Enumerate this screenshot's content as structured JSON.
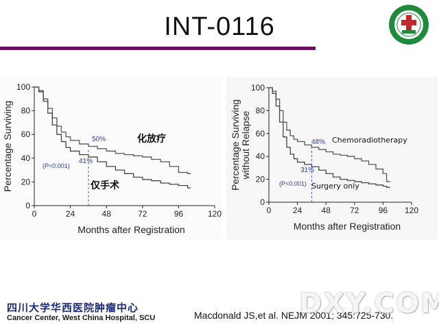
{
  "slide": {
    "title": "INT-0116",
    "institution_cn": "四川大学华西医院肿瘤中心",
    "institution_en": "Cancer Center, West China Hospital, SCU",
    "citation": "Macdonald JS,et al. NEJM 2001; 345:725-730.",
    "watermark": "DXY.COM",
    "accent_color": "#6a0f5e",
    "logo_colors": {
      "green": "#1f8a3a",
      "red": "#c0282b"
    }
  },
  "chart_data": [
    {
      "type": "line",
      "subtype": "kaplan-meier",
      "xlabel": "Months after Registration",
      "ylabel": "Percentage Surviving",
      "xlim": [
        0,
        120
      ],
      "ylim": [
        0,
        100
      ],
      "xticks": [
        0,
        24,
        48,
        72,
        96,
        120
      ],
      "yticks": [
        0,
        20,
        40,
        60,
        80,
        100
      ],
      "grid": false,
      "annotations": {
        "upper_pct": "50%",
        "lower_pct": "41%",
        "p_value": "(P<0.001)",
        "dashed_at_month": 36
      },
      "series": [
        {
          "name": "化放疗",
          "x": [
            0,
            3,
            6,
            9,
            12,
            15,
            18,
            21,
            24,
            30,
            36,
            42,
            48,
            54,
            60,
            66,
            72,
            78,
            84,
            90,
            96,
            102,
            104
          ],
          "y": [
            100,
            97,
            90,
            82,
            74,
            67,
            62,
            58,
            55,
            52,
            50,
            48,
            46,
            44,
            43,
            42,
            41,
            39,
            37,
            33,
            28,
            27,
            27
          ]
        },
        {
          "name": "仅手术",
          "x": [
            0,
            3,
            6,
            9,
            12,
            15,
            18,
            21,
            24,
            30,
            36,
            42,
            48,
            54,
            60,
            66,
            72,
            78,
            84,
            90,
            96,
            102,
            104
          ],
          "y": [
            100,
            96,
            88,
            78,
            68,
            60,
            54,
            49,
            46,
            43,
            41,
            37,
            33,
            30,
            27,
            24,
            22,
            21,
            19,
            18,
            17,
            15,
            15
          ]
        }
      ]
    },
    {
      "type": "line",
      "subtype": "kaplan-meier",
      "xlabel": "Months after Registration",
      "ylabel": "Percentage Surviving without Relapse",
      "ylabel_lines": [
        "Percentage Surviving",
        "without Relapse"
      ],
      "xlim": [
        0,
        120
      ],
      "ylim": [
        0,
        100
      ],
      "xticks": [
        0,
        24,
        48,
        72,
        96,
        120
      ],
      "yticks": [
        0,
        20,
        40,
        60,
        80,
        100
      ],
      "grid": false,
      "annotations": {
        "upper_pct": "48%",
        "lower_pct": "31%",
        "p_value": "(P<0.001)",
        "dashed_at_month": 36
      },
      "series": [
        {
          "name": "Chemoradiotherapy",
          "x": [
            0,
            3,
            6,
            9,
            12,
            15,
            18,
            21,
            24,
            30,
            36,
            42,
            48,
            54,
            60,
            66,
            72,
            78,
            84,
            90,
            96,
            99,
            102
          ],
          "y": [
            100,
            97,
            90,
            80,
            70,
            63,
            58,
            55,
            53,
            50,
            48,
            46,
            44,
            42,
            41,
            40,
            38,
            36,
            33,
            29,
            25,
            18,
            18
          ]
        },
        {
          "name": "Surgery only",
          "x": [
            0,
            3,
            6,
            9,
            12,
            15,
            18,
            21,
            24,
            30,
            36,
            42,
            48,
            54,
            60,
            66,
            72,
            78,
            84,
            90,
            96,
            99,
            102
          ],
          "y": [
            100,
            95,
            84,
            70,
            57,
            48,
            42,
            38,
            35,
            33,
            31,
            28,
            25,
            22,
            20,
            19,
            18,
            17,
            16,
            15,
            14,
            13,
            13
          ]
        }
      ]
    }
  ]
}
